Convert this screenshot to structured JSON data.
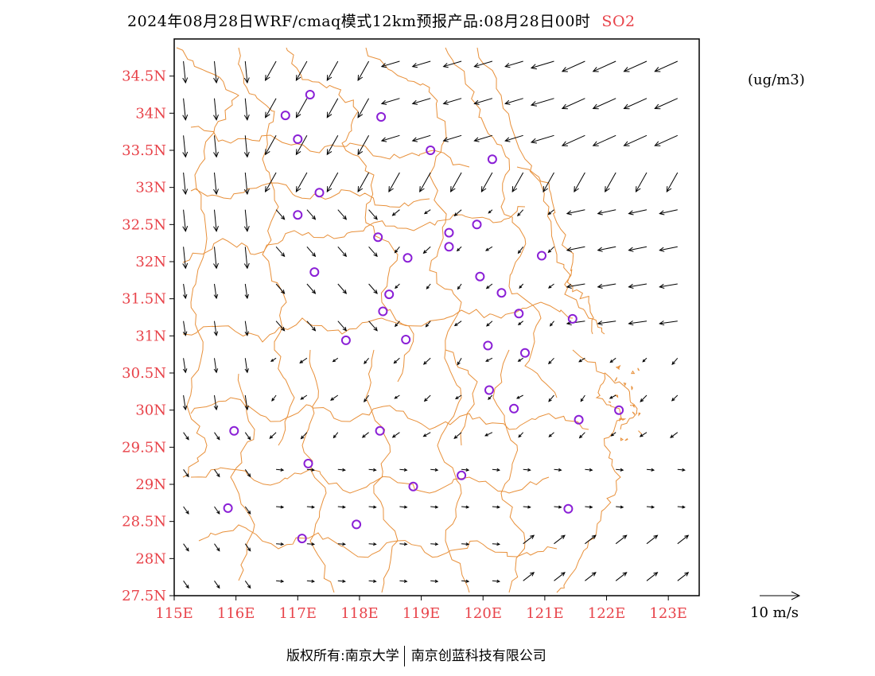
{
  "title": {
    "text": "2024年08月28日WRF/cmaq模式12km预报产品:08月28日00时",
    "species": "SO2"
  },
  "colors": {
    "axis_label": "#e8434a",
    "boundary": "#e8903a",
    "station": "#8a1fd6",
    "arrow": "#000000"
  },
  "units": "(ug/m3)",
  "wind_scale": {
    "label": "10 m/s",
    "speed_ms": 10
  },
  "footer": {
    "left": "版权所有:南京大学",
    "right": "南京创蓝科技有限公司"
  },
  "axes": {
    "lon_range": [
      115,
      123.5
    ],
    "lat_range": [
      27.5,
      35.0
    ],
    "x_ticks": [
      {
        "value": 115,
        "label": "115E"
      },
      {
        "value": 116,
        "label": "116E"
      },
      {
        "value": 117,
        "label": "117E"
      },
      {
        "value": 118,
        "label": "118E"
      },
      {
        "value": 119,
        "label": "119E"
      },
      {
        "value": 120,
        "label": "120E"
      },
      {
        "value": 121,
        "label": "121E"
      },
      {
        "value": 122,
        "label": "122E"
      },
      {
        "value": 123,
        "label": "123E"
      }
    ],
    "y_ticks": [
      {
        "value": 27.5,
        "label": "27.5N"
      },
      {
        "value": 28,
        "label": "28N"
      },
      {
        "value": 28.5,
        "label": "28.5N"
      },
      {
        "value": 29,
        "label": "29N"
      },
      {
        "value": 29.5,
        "label": "29.5N"
      },
      {
        "value": 30,
        "label": "30N"
      },
      {
        "value": 30.5,
        "label": "30.5N"
      },
      {
        "value": 31,
        "label": "31N"
      },
      {
        "value": 31.5,
        "label": "31.5N"
      },
      {
        "value": 32,
        "label": "32N"
      },
      {
        "value": 32.5,
        "label": "32.5N"
      },
      {
        "value": 33,
        "label": "33N"
      },
      {
        "value": 33.5,
        "label": "33.5N"
      },
      {
        "value": 34,
        "label": "34N"
      },
      {
        "value": 34.5,
        "label": "34.5N"
      }
    ]
  },
  "stations": [
    {
      "lon": 117.2,
      "lat": 34.25
    },
    {
      "lon": 116.8,
      "lat": 33.97
    },
    {
      "lon": 118.35,
      "lat": 33.95
    },
    {
      "lon": 117.0,
      "lat": 33.65
    },
    {
      "lon": 119.15,
      "lat": 33.5
    },
    {
      "lon": 120.15,
      "lat": 33.38
    },
    {
      "lon": 117.35,
      "lat": 32.93
    },
    {
      "lon": 117.0,
      "lat": 32.63
    },
    {
      "lon": 119.9,
      "lat": 32.5
    },
    {
      "lon": 119.45,
      "lat": 32.39
    },
    {
      "lon": 118.3,
      "lat": 32.33
    },
    {
      "lon": 119.45,
      "lat": 32.2
    },
    {
      "lon": 118.78,
      "lat": 32.05
    },
    {
      "lon": 120.95,
      "lat": 32.08
    },
    {
      "lon": 117.27,
      "lat": 31.86
    },
    {
      "lon": 119.95,
      "lat": 31.8
    },
    {
      "lon": 120.3,
      "lat": 31.58
    },
    {
      "lon": 118.48,
      "lat": 31.56
    },
    {
      "lon": 118.38,
      "lat": 31.33
    },
    {
      "lon": 120.58,
      "lat": 31.3
    },
    {
      "lon": 121.45,
      "lat": 31.23
    },
    {
      "lon": 117.78,
      "lat": 30.94
    },
    {
      "lon": 118.75,
      "lat": 30.95
    },
    {
      "lon": 120.08,
      "lat": 30.87
    },
    {
      "lon": 120.68,
      "lat": 30.77
    },
    {
      "lon": 120.1,
      "lat": 30.27
    },
    {
      "lon": 120.5,
      "lat": 30.02
    },
    {
      "lon": 122.2,
      "lat": 30.0
    },
    {
      "lon": 121.55,
      "lat": 29.87
    },
    {
      "lon": 115.97,
      "lat": 29.72
    },
    {
      "lon": 118.33,
      "lat": 29.72
    },
    {
      "lon": 117.17,
      "lat": 29.28
    },
    {
      "lon": 118.87,
      "lat": 28.97
    },
    {
      "lon": 119.65,
      "lat": 29.12
    },
    {
      "lon": 115.87,
      "lat": 28.68
    },
    {
      "lon": 121.38,
      "lat": 28.67
    },
    {
      "lon": 117.95,
      "lat": 28.46
    },
    {
      "lon": 117.07,
      "lat": 28.27
    }
  ]
}
